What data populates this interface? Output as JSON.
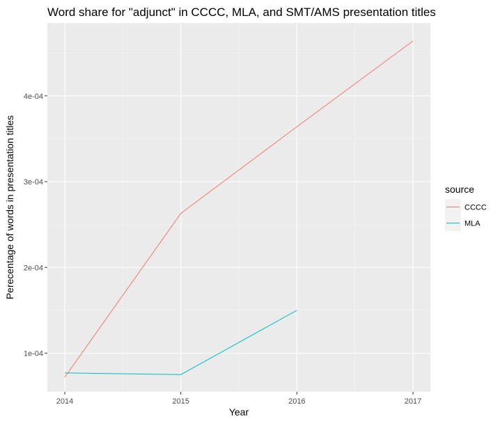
{
  "chart_data": {
    "type": "line",
    "title": "Word share for \"adjunct\" in CCCC, MLA, and SMT/AMS presentation titles",
    "xlabel": "Year",
    "ylabel": "Perecentage of words in presentation titles",
    "x_ticks": [
      "2014",
      "2015",
      "2016",
      "2017"
    ],
    "y_ticks": [
      "1e-04",
      "2e-04",
      "3e-04",
      "4e-04"
    ],
    "xlim": [
      2013.85,
      2017.15
    ],
    "ylim": [
      5.5e-05,
      0.000485
    ],
    "grid": true,
    "legend_title": "source",
    "legend_position": "right",
    "series": [
      {
        "name": "CCCC",
        "color": "#F8766D",
        "x": [
          2014,
          2015,
          2016,
          2017
        ],
        "y": [
          7.2e-05,
          0.000263,
          0.000364,
          0.000464
        ]
      },
      {
        "name": "MLA",
        "color": "#00BFC4",
        "x": [
          2014,
          2015,
          2016
        ],
        "y": [
          7.7e-05,
          7.5e-05,
          0.00015
        ]
      }
    ]
  }
}
